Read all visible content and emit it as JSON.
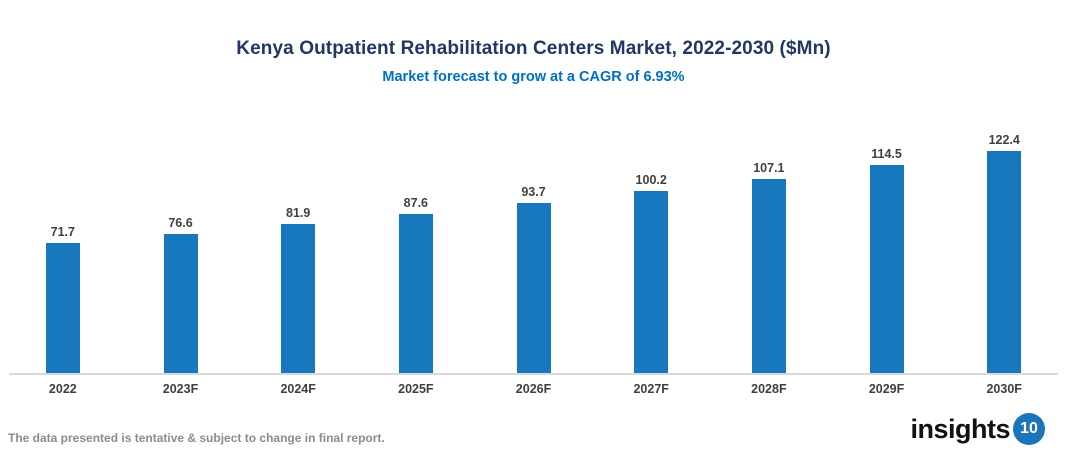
{
  "header": {
    "title": "Kenya Outpatient Rehabilitation Centers Market, 2022-2030 ($Mn)",
    "subtitle": "Market forecast to grow at a CAGR of 6.93%"
  },
  "chart_data": {
    "type": "bar",
    "categories": [
      "2022",
      "2023F",
      "2024F",
      "2025F",
      "2026F",
      "2027F",
      "2028F",
      "2029F",
      "2030F"
    ],
    "values": [
      71.7,
      76.6,
      81.9,
      87.6,
      93.7,
      100.2,
      107.1,
      114.5,
      122.4
    ],
    "title": "Kenya Outpatient Rehabilitation Centers Market, 2022-2030 ($Mn)",
    "subtitle": "Market forecast to grow at a CAGR of 6.93%",
    "xlabel": "",
    "ylabel": "",
    "ylim": [
      0,
      145
    ],
    "grid": false,
    "legend": false,
    "value_labels_shown": true,
    "bar_color": "#1878BE",
    "value_label_color": "#404040",
    "axis_line_color": "#D9D9D9",
    "title_color": "#1F3864",
    "subtitle_color": "#0070C0"
  },
  "footer": {
    "note": "The data presented is tentative & subject to change in final report.",
    "logo_text": "insights",
    "logo_badge": "10",
    "logo_badge_color": "#1B75BB"
  }
}
